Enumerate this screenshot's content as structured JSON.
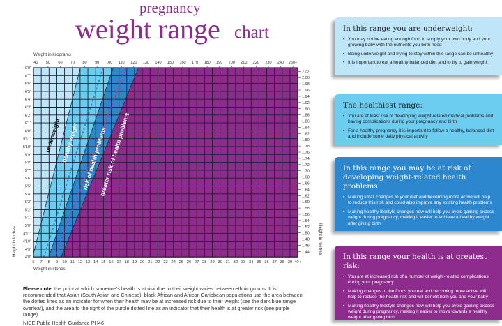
{
  "title": {
    "line1": "pregnancy",
    "line2": "weight range",
    "line3": "chart"
  },
  "colors": {
    "underweight": "#bfe6f8",
    "healthy": "#6dcdf1",
    "risk": "#2d87cf",
    "greater_risk": "#8e2c8d",
    "grid": "#1e1e2a",
    "blue_dotted": "#2d87cf",
    "purple_dotted": "#c2338f"
  },
  "chart_data": {
    "type": "area",
    "title": "pregnancy weight range chart",
    "xlabel_top": "Weight in kilograms",
    "xlabel_bottom": "Weight in stones",
    "ylabel_left": "Height in inches",
    "ylabel_right": "Height in metres",
    "x_stones_range": [
      6,
      40
    ],
    "y_inches_range": [
      56,
      80
    ],
    "kg_ticks": [
      "40",
      "50",
      "60",
      "70",
      "80",
      "90",
      "100",
      "110",
      "120",
      "130",
      "140",
      "150",
      "160",
      "170",
      "180",
      "190",
      "200",
      "210",
      "220",
      "230",
      "240",
      "250+"
    ],
    "stone_ticks": [
      "6",
      "7",
      "8",
      "9",
      "10",
      "11",
      "12",
      "13",
      "14",
      "15",
      "16",
      "17",
      "18",
      "19",
      "20",
      "21",
      "22",
      "23",
      "24",
      "25",
      "26",
      "27",
      "28",
      "29",
      "30",
      "31",
      "32",
      "33",
      "34",
      "35",
      "36",
      "37",
      "38",
      "39",
      "40+"
    ],
    "inch_ticks": [
      "6'8\"",
      "6'7\"",
      "6'6\"",
      "6'5\"",
      "6'4\"",
      "6'3\"",
      "6'2\"",
      "6'1\"",
      "6'0\"",
      "5'11\"",
      "5'10\"",
      "5'9\"",
      "5'8\"",
      "5'7\"",
      "5'6\"",
      "5'5\"",
      "5'4\"",
      "5'3\"",
      "5'2\"",
      "5'1\"",
      "5'0\"",
      "4'11\"",
      "4'10\"",
      "4'9\"",
      "4'8\""
    ],
    "metre_ticks": [
      "2.02",
      "2.00",
      "1.98",
      "1.96",
      "1.94",
      "1.92",
      "1.90",
      "1.88",
      "1.86",
      "1.84",
      "1.82",
      "1.80",
      "1.78",
      "1.76",
      "1.74",
      "1.72",
      "1.70",
      "1.68",
      "1.66",
      "1.64",
      "1.62",
      "1.60",
      "1.58",
      "1.56",
      "1.54",
      "1.52",
      "1.50",
      "1.48",
      "1.46",
      "1.44"
    ],
    "band_bmi_thresholds": [
      18.5,
      25,
      30
    ],
    "dotted_bmi_lines": [
      {
        "name": "blue dotted",
        "bmi": 23
      },
      {
        "name": "purple dotted",
        "bmi": 27.5
      }
    ],
    "bands": [
      {
        "name": "underweight",
        "label": "underweight"
      },
      {
        "name": "healthy",
        "label": "healthy weight"
      },
      {
        "name": "risk",
        "label": "risk of health problems"
      },
      {
        "name": "greater_risk",
        "label": "greater risk of health problems"
      }
    ]
  },
  "note": {
    "bold": "Please note:",
    "text": " the point at which someone's health is at risk due to their weight varies between ethnic groups. It is recommended that Asian (South Asian and Chinese), black African and African Caribbean populations use the area between the dotted lines as an indicator for when their health may be at increased risk due to their weight (see the dark blue range overleaf), and the area to the right of the purple dotted line as an indicator that their health is at greater risk (see purple range).",
    "source": "NICE Public Health Guidance PH46"
  },
  "panels": [
    {
      "heading": "In this range you are underweight:",
      "items": [
        "You may not be eating enough food to supply your own body and your growing baby with the nutrients you both need",
        "Being underweight and trying to stay within this range can be unhealthy",
        "It is important to eat a healthy balanced diet and to try to gain weight"
      ]
    },
    {
      "heading": "The healthiest range:",
      "items": [
        "You are at least risk of developing weight-related medical problems and having complications during your pregnancy and birth",
        "For a healthy pregnancy it is important to follow a healthy, balanced diet and include some daily physical activity"
      ]
    },
    {
      "heading": "In this range you may be at risk of developing weight-related health problems:",
      "items": [
        "Making small changes to your diet and becoming more active will help to reduce this risk and could also improve any existing health problems",
        "Making healthy lifestyle changes now will help you avoid gaining excess weight during pregnancy, making it easier to achieve a healthy weight after giving birth"
      ]
    },
    {
      "heading": "In this range your health is at greatest risk:",
      "items": [
        "You are at increased risk of a number of weight-related complications during your pregnancy",
        "Making changes to the foods you eat and becoming more active will help to reduce the health risk and will benefit both you and your baby",
        "Making healthy lifestyle changes now will help you avoid gaining excess weight during pregnancy, making it easier to move towards a healthy weight after giving birth"
      ]
    }
  ]
}
